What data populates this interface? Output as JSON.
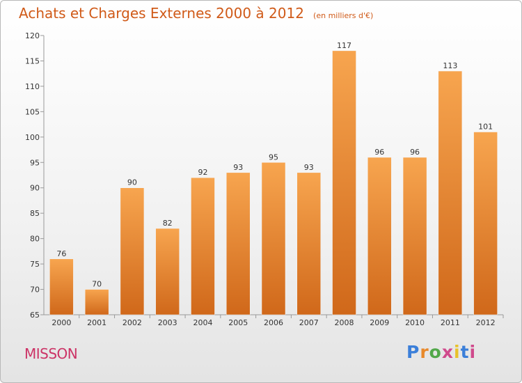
{
  "header": {
    "title": "Achats et Charges Externes 2000 à 2012",
    "unit": "(en milliers d'€)"
  },
  "footer": {
    "commune": "MISSON",
    "logo": {
      "text": "Proxiti",
      "letter_colors": [
        "#3b7fd9",
        "#e8892b",
        "#52a84a",
        "#d04a8c",
        "#e8c22b",
        "#3b7fd9",
        "#d04a8c"
      ]
    }
  },
  "chart_data": {
    "type": "bar",
    "categories": [
      "2000",
      "2001",
      "2002",
      "2003",
      "2004",
      "2005",
      "2006",
      "2007",
      "2008",
      "2009",
      "2010",
      "2011",
      "2012"
    ],
    "values": [
      76,
      70,
      90,
      82,
      92,
      93,
      95,
      93,
      117,
      96,
      96,
      113,
      101
    ],
    "value_labels": [
      "76",
      "70",
      "90",
      "82",
      "92",
      "93",
      "95",
      "93",
      "117",
      "96",
      "96",
      "113",
      "101"
    ],
    "title": "Achats et Charges Externes 2000 à 2012",
    "ylim": [
      65,
      120
    ],
    "yticks": [
      65,
      70,
      75,
      80,
      85,
      90,
      95,
      100,
      105,
      110,
      115,
      120
    ],
    "grid": false,
    "legend": "none",
    "colors": {
      "bar_light": "#f7a54f",
      "bar_dark": "#d0681a",
      "axis": "#999999"
    }
  }
}
